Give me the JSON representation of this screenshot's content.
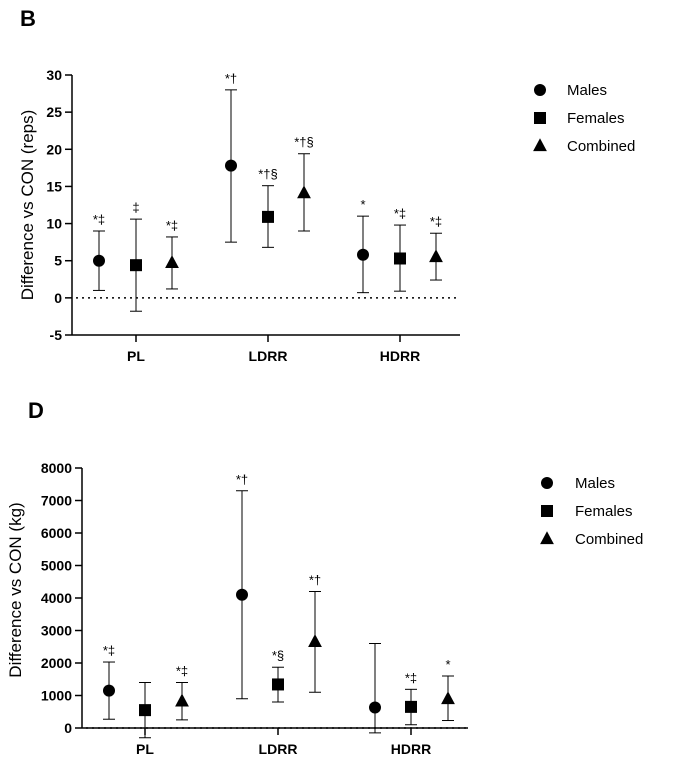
{
  "chart_data": [
    {
      "panel": "B",
      "type": "scatter",
      "title": "",
      "xlabel": "",
      "ylabel": "Difference vs CON (reps)",
      "ylim": [
        -5,
        30
      ],
      "yticks": [
        "-5",
        "0",
        "5",
        "10",
        "15",
        "20",
        "25",
        "30"
      ],
      "ytick_values": [
        -5,
        0,
        5,
        10,
        15,
        20,
        25,
        30
      ],
      "reference_line": 0,
      "categories": [
        "PL",
        "LDRR",
        "HDRR"
      ],
      "legend": [
        "Males",
        "Females",
        "Combined"
      ],
      "series": [
        {
          "name": "Males",
          "marker": "circle",
          "values": [
            5.0,
            17.8,
            5.8
          ],
          "lower": [
            1.0,
            7.5,
            0.7
          ],
          "upper": [
            9.0,
            28.0,
            11.0
          ],
          "annotations": [
            "*‡",
            "*†",
            "*"
          ]
        },
        {
          "name": "Females",
          "marker": "square",
          "values": [
            4.4,
            10.9,
            5.3
          ],
          "lower": [
            -1.8,
            6.8,
            0.9
          ],
          "upper": [
            10.6,
            15.1,
            9.8
          ],
          "annotations": [
            "‡",
            "*†§",
            "*‡"
          ]
        },
        {
          "name": "Combined",
          "marker": "triangle",
          "values": [
            4.7,
            14.1,
            5.5
          ],
          "lower": [
            1.2,
            9.0,
            2.4
          ],
          "upper": [
            8.2,
            19.4,
            8.7
          ],
          "annotations": [
            "*‡",
            "*†§",
            "*‡"
          ]
        }
      ]
    },
    {
      "panel": "D",
      "type": "scatter",
      "title": "",
      "xlabel": "",
      "ylabel": "Difference vs CON (kg)",
      "ylim": [
        0,
        8000
      ],
      "yticks": [
        "0",
        "1000",
        "2000",
        "3000",
        "4000",
        "5000",
        "6000",
        "7000",
        "8000"
      ],
      "ytick_values": [
        0,
        1000,
        2000,
        3000,
        4000,
        5000,
        6000,
        7000,
        8000
      ],
      "reference_line": 0,
      "categories": [
        "PL",
        "LDRR",
        "HDRR"
      ],
      "legend": [
        "Males",
        "Females",
        "Combined"
      ],
      "series": [
        {
          "name": "Males",
          "marker": "circle",
          "values": [
            1150,
            4100,
            630
          ],
          "lower": [
            270,
            900,
            -150
          ],
          "upper": [
            2030,
            7300,
            2600
          ],
          "annotations": [
            "*‡",
            "*†",
            ""
          ]
        },
        {
          "name": "Females",
          "marker": "square",
          "values": [
            550,
            1340,
            650
          ],
          "lower": [
            -300,
            800,
            100
          ],
          "upper": [
            1400,
            1870,
            1190
          ],
          "annotations": [
            "",
            "*§",
            "*‡"
          ]
        },
        {
          "name": "Combined",
          "marker": "triangle",
          "values": [
            820,
            2650,
            890
          ],
          "lower": [
            250,
            1100,
            230
          ],
          "upper": [
            1400,
            4200,
            1600
          ],
          "annotations": [
            "*‡",
            "*†",
            "*"
          ]
        }
      ]
    }
  ]
}
